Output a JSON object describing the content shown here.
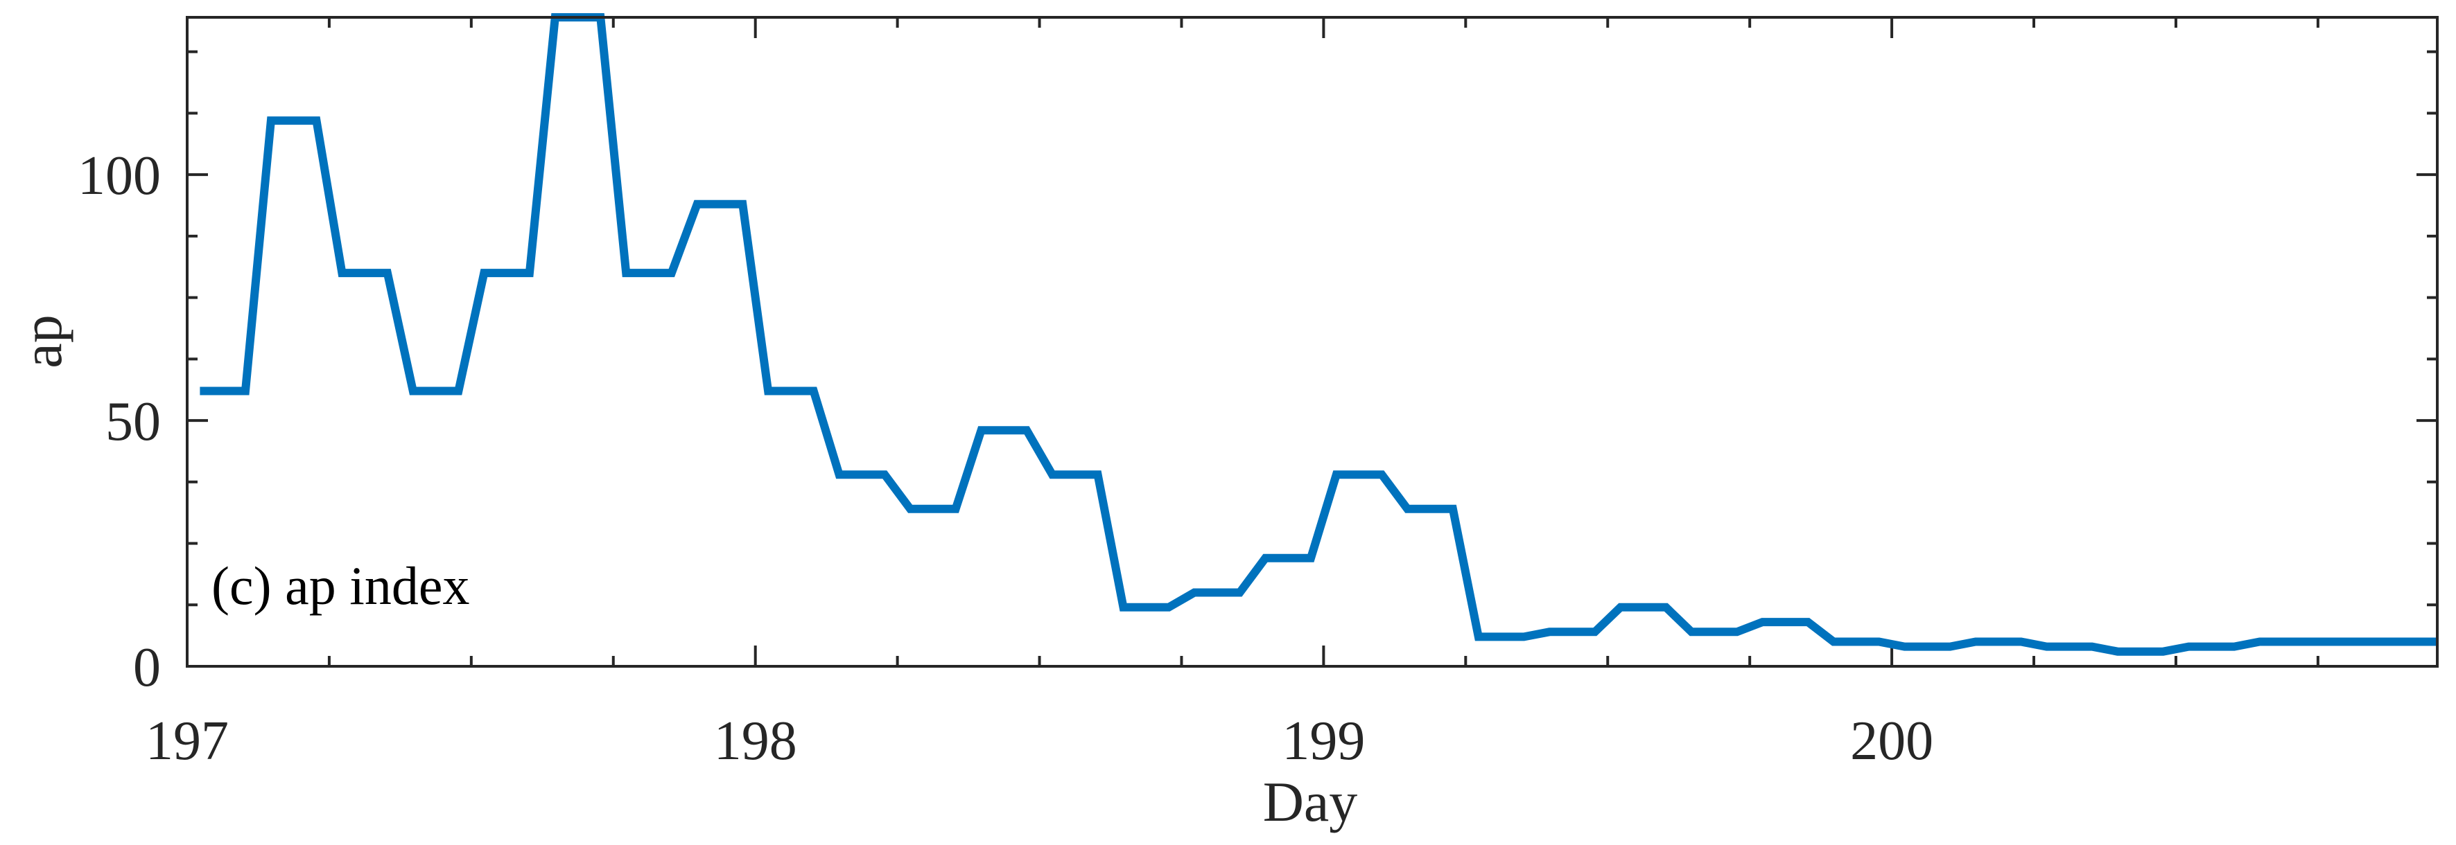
{
  "chart_data": {
    "type": "line",
    "xlabel": "Day",
    "ylabel": "ap",
    "annotation": "(c) ap index",
    "xlim": [
      197,
      200.96
    ],
    "ylim": [
      0,
      132
    ],
    "x_ticks": [
      197,
      198,
      199,
      200
    ],
    "x_tick_labels": [
      "197",
      "198",
      "199",
      "200"
    ],
    "y_ticks": [
      0,
      50,
      100
    ],
    "y_tick_labels": [
      "0",
      "50",
      "100"
    ],
    "grid": false,
    "line_color": "#0072BD",
    "series": [
      {
        "x": [
          197.0625,
          197.0625,
          197.1875,
          197.3125,
          197.4375,
          197.5625,
          197.6875,
          197.8125,
          197.9375,
          198.0625,
          198.1875,
          198.3125,
          198.4375,
          198.5625,
          198.6875,
          198.8125,
          198.9375,
          199.0625,
          199.1875,
          199.3125,
          199.4375,
          199.5625,
          199.6875,
          199.8125,
          199.9375,
          200.0625,
          200.1875,
          200.3125,
          200.4375,
          200.5625,
          200.6875,
          200.8125,
          200.9375
        ],
        "y": [
          56,
          56,
          111,
          80,
          56,
          80,
          132,
          80,
          94,
          56,
          39,
          32,
          48,
          39,
          12,
          15,
          22,
          39,
          32,
          6,
          7,
          12,
          7,
          9,
          5,
          4,
          5,
          4,
          3,
          4,
          5,
          5,
          5
        ]
      }
    ]
  }
}
